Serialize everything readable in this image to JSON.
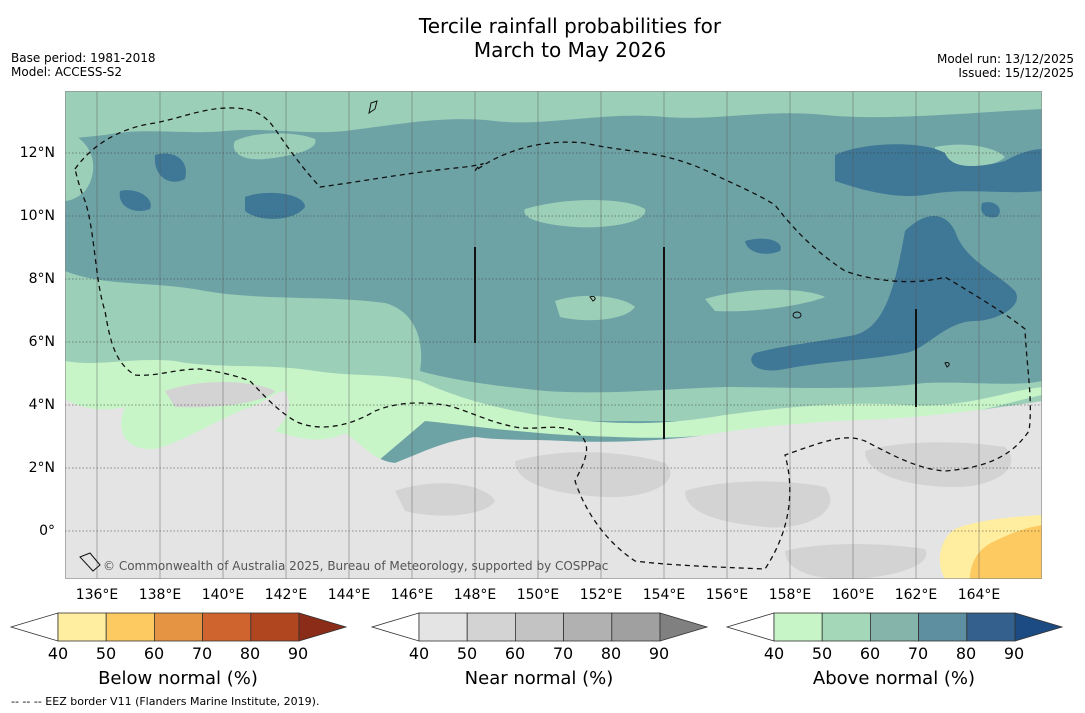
{
  "title": {
    "line1": "Tercile rainfall probabilities for",
    "line2": "March to May 2026"
  },
  "meta_left": {
    "base_period": "Base period: 1981-2018",
    "model": "Model: ACCESS-S2"
  },
  "meta_right": {
    "model_run": "Model run: 13/12/2025",
    "issued": "Issued: 15/12/2025"
  },
  "map": {
    "copyright": "© Commonwealth of Australia 2025, Bureau of Meteorology, supported by COSPPac",
    "lat_labels": [
      "12°N",
      "10°N",
      "8°N",
      "6°N",
      "4°N",
      "2°N",
      "0°"
    ],
    "lon_labels": [
      "136°E",
      "138°E",
      "140°E",
      "142°E",
      "144°E",
      "146°E",
      "148°E",
      "150°E",
      "152°E",
      "154°E",
      "156°E",
      "158°E",
      "160°E",
      "162°E",
      "164°E"
    ]
  },
  "colorbars": [
    {
      "name": "below-normal",
      "title": "Below normal (%)",
      "ticks": [
        "40",
        "50",
        "60",
        "70",
        "80",
        "90"
      ],
      "colors": [
        "#ffeea0",
        "#fdca62",
        "#e59444",
        "#d0642e",
        "#b0461f",
        "#8b2c18"
      ]
    },
    {
      "name": "near-normal",
      "title": "Near normal (%)",
      "ticks": [
        "40",
        "50",
        "60",
        "70",
        "80",
        "90"
      ],
      "colors": [
        "#e4e4e4",
        "#d3d3d3",
        "#c3c3c3",
        "#b1b1b1",
        "#a0a0a0",
        "#808080"
      ]
    },
    {
      "name": "above-normal",
      "title": "Above normal (%)",
      "ticks": [
        "40",
        "50",
        "60",
        "70",
        "80",
        "90"
      ],
      "colors": [
        "#c8f5c8",
        "#a4d6b8",
        "#85b4aa",
        "#5e8fa0",
        "#34608d",
        "#1c4b83"
      ]
    }
  ],
  "footer": "--  --  -- EEZ border V11 (Flanders Marine Institute, 2019)."
}
